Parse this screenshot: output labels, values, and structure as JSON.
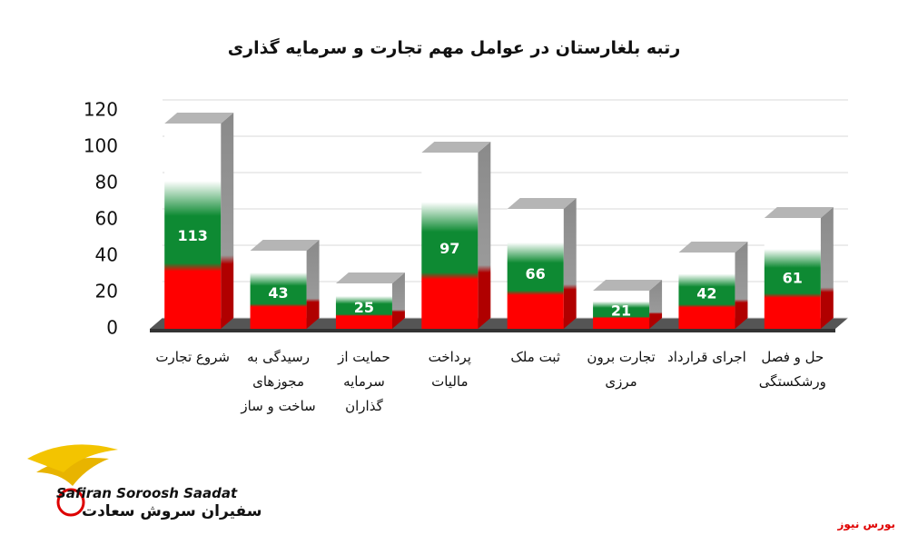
{
  "chart_data": {
    "type": "bar3d",
    "title": "رتبه بلغارستان در عوامل مهم تجارت و سرمایه گذاری",
    "categories": [
      "شروع تجارت",
      "رسیدگی به مجوزهای ساخت و ساز",
      "حمایت از سرمایه گذاران",
      "پرداخت مالیات",
      "ثبت ملک",
      "تجارت برون مرزی",
      "اجرای قرارداد",
      "حل و فصل ورشکستگی"
    ],
    "values": [
      113,
      43,
      25,
      97,
      66,
      21,
      42,
      61
    ],
    "ylim": [
      0,
      120
    ],
    "yticks": [
      0,
      20,
      40,
      60,
      80,
      100,
      120
    ],
    "grid": true,
    "colors": [
      "#ff0000",
      "#0e8a33",
      "#ffffff"
    ]
  },
  "logo": {
    "name_en": "Safiran Soroosh Saadat",
    "name_fa": "سفیران سروش سعادت"
  },
  "source": "بورس نیوز"
}
